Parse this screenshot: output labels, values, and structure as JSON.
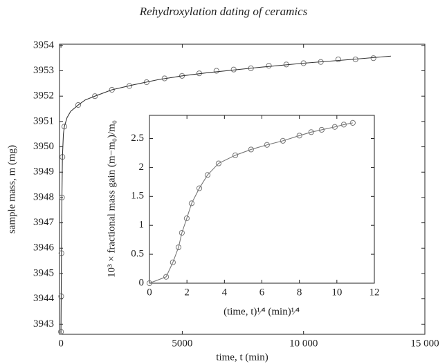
{
  "chart_data": [
    {
      "type": "scatter",
      "title": "Rehydroxylation dating of ceramics",
      "xlabel": "time, t (min)",
      "ylabel": "sample mass, m (mg)",
      "xlim": [
        -60,
        15000
      ],
      "ylim": [
        3942.6,
        3954.05
      ],
      "xticks": [
        0,
        5000,
        {
          "value": 10000,
          "label": "10 000"
        },
        {
          "value": 15000,
          "label": "15 000"
        }
      ],
      "yticks": [
        3943,
        3944,
        3945,
        3946,
        3947,
        3948,
        3949,
        3950,
        3951,
        3952,
        3953,
        3954
      ],
      "series": [
        {
          "color": "#777777",
          "style": "markers",
          "x": [
            0,
            10,
            20,
            40,
            60,
            140,
            710,
            1400,
            2100,
            2820,
            3530,
            4270,
            4990,
            5700,
            6410,
            7120,
            7830,
            8570,
            9290,
            10000,
            10710,
            11430,
            12140,
            12880
          ],
          "values": [
            3942.7,
            3944.1,
            3945.8,
            3948.0,
            3949.6,
            3950.8,
            3951.65,
            3952.0,
            3952.25,
            3952.4,
            3952.55,
            3952.7,
            3952.8,
            3952.9,
            3953.0,
            3953.05,
            3953.1,
            3953.2,
            3953.25,
            3953.3,
            3953.35,
            3953.45,
            3953.45,
            3953.5
          ]
        },
        {
          "color": "#333333",
          "style": "line",
          "x": [
            0,
            10,
            20,
            40,
            60,
            100,
            140,
            250,
            400,
            710,
            1000,
            1400,
            2100,
            3000,
            4000,
            5000,
            6000,
            8000,
            10000,
            12000,
            13600
          ],
          "values": [
            3942.7,
            3944.1,
            3945.8,
            3948.0,
            3949.6,
            3950.5,
            3950.8,
            3951.15,
            3951.4,
            3951.65,
            3951.85,
            3952.0,
            3952.25,
            3952.45,
            3952.65,
            3952.8,
            3952.92,
            3953.12,
            3953.3,
            3953.45,
            3953.58
          ]
        }
      ]
    },
    {
      "type": "scatter",
      "xlabel": "(time, t)¹⁄⁴ (min)¹⁄⁴",
      "ylabel": "10³ × fractional mass gain (m−m₀)/m₀",
      "xlim": [
        0,
        12
      ],
      "ylim": [
        0,
        2.9
      ],
      "xticks": [
        0,
        2,
        4,
        6,
        8,
        10,
        12
      ],
      "yticks": [
        0,
        0.5,
        1,
        1.5,
        2,
        2.5
      ],
      "series": [
        {
          "color": "#777777",
          "style": "both",
          "x": [
            0,
            0.89,
            1.25,
            1.55,
            1.73,
            1.99,
            2.25,
            2.66,
            3.1,
            3.69,
            4.58,
            5.42,
            6.27,
            7.12,
            8.0,
            8.63,
            9.19,
            9.89,
            10.37,
            10.85
          ],
          "values": [
            0,
            0.11,
            0.36,
            0.62,
            0.87,
            1.12,
            1.38,
            1.64,
            1.87,
            2.07,
            2.21,
            2.31,
            2.39,
            2.46,
            2.55,
            2.61,
            2.65,
            2.7,
            2.74,
            2.77
          ]
        }
      ]
    }
  ]
}
